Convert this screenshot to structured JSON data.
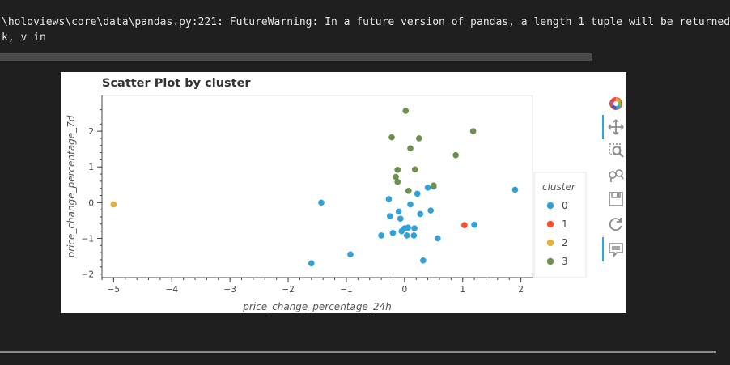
{
  "console": {
    "line1": "\\holoviews\\core\\data\\pandas.py:221: FutureWarning: In a future version of pandas, a length 1 tuple will be returned",
    "line2": "k, v in"
  },
  "toolbar": {
    "tools": [
      {
        "name": "bokeh-logo-icon",
        "active": false
      },
      {
        "name": "pan-icon",
        "active": true
      },
      {
        "name": "box-zoom-icon",
        "active": false
      },
      {
        "name": "wheel-zoom-icon",
        "active": false
      },
      {
        "name": "save-icon",
        "active": false
      },
      {
        "name": "reset-icon",
        "active": false
      },
      {
        "name": "hover-icon",
        "active": true
      }
    ]
  },
  "chart_data": {
    "type": "scatter",
    "title": "Scatter Plot by cluster",
    "xlabel": "price_change_percentage_24h",
    "ylabel": "price_change_percentage_7d",
    "xlim": [
      -5.2,
      2.2
    ],
    "ylim": [
      -2.1,
      3.0
    ],
    "xticks": [
      -5,
      -4,
      -3,
      -2,
      -1,
      0,
      1,
      2
    ],
    "xtick_labels": [
      "−5",
      "−4",
      "−3",
      "−2",
      "−1",
      "0",
      "1",
      "2"
    ],
    "yticks": [
      -2,
      -1,
      0,
      1,
      2
    ],
    "ytick_labels": [
      "−2",
      "−1",
      "0",
      "1",
      "2"
    ],
    "grid": false,
    "legend": {
      "title": "cluster",
      "placement": "right"
    },
    "colors": [
      "#30a2da",
      "#fc4f30",
      "#e5ae38",
      "#6d904f"
    ],
    "series": [
      {
        "name": "0",
        "points": [
          [
            -1.6,
            -1.7
          ],
          [
            -1.43,
            0.0
          ],
          [
            -0.93,
            -1.45
          ],
          [
            -0.4,
            -0.92
          ],
          [
            -0.27,
            0.1
          ],
          [
            -0.25,
            -0.38
          ],
          [
            -0.2,
            -0.85
          ],
          [
            -0.1,
            -0.25
          ],
          [
            -0.07,
            -0.45
          ],
          [
            -0.05,
            -0.8
          ],
          [
            0.0,
            -0.72
          ],
          [
            0.04,
            -0.92
          ],
          [
            0.06,
            -0.7
          ],
          [
            0.1,
            -0.05
          ],
          [
            0.16,
            -0.92
          ],
          [
            0.17,
            -0.72
          ],
          [
            0.22,
            0.25
          ],
          [
            0.27,
            -0.32
          ],
          [
            0.32,
            -1.62
          ],
          [
            0.4,
            0.42
          ],
          [
            0.45,
            -0.22
          ],
          [
            0.5,
            0.45
          ],
          [
            0.57,
            -1.0
          ],
          [
            1.2,
            -0.62
          ],
          [
            1.9,
            0.36
          ]
        ]
      },
      {
        "name": "1",
        "points": [
          [
            1.03,
            -0.63
          ]
        ]
      },
      {
        "name": "2",
        "points": [
          [
            -5.0,
            -0.05
          ]
        ]
      },
      {
        "name": "3",
        "points": [
          [
            0.02,
            2.57
          ],
          [
            -0.22,
            1.83
          ],
          [
            0.25,
            1.8
          ],
          [
            0.1,
            1.52
          ],
          [
            -0.12,
            0.92
          ],
          [
            -0.15,
            0.72
          ],
          [
            -0.12,
            0.58
          ],
          [
            0.07,
            0.33
          ],
          [
            0.18,
            0.93
          ],
          [
            0.5,
            0.48
          ],
          [
            0.88,
            1.33
          ],
          [
            1.18,
            2.0
          ]
        ]
      }
    ]
  }
}
